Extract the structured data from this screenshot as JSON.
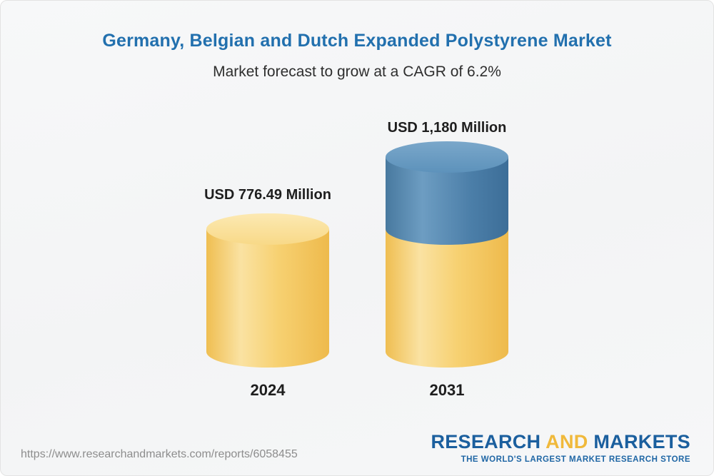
{
  "chart_data": {
    "type": "bar",
    "title": "Germany, Belgian and Dutch Expanded Polystyrene Market",
    "subtitle": "Market forecast to grow at a CAGR of 6.2%",
    "categories": [
      "2024",
      "2031"
    ],
    "values": [
      776.49,
      1180
    ],
    "value_labels": [
      "USD 776.49 Million",
      "USD 1,180 Million"
    ],
    "unit": "USD Million",
    "cagr": "6.2%",
    "legend_position": "none",
    "grid": false,
    "colors": {
      "base_segment": "#F6CB5C",
      "growth_segment": "#4A7DA8",
      "title_text": "#2270AE"
    }
  },
  "footer": {
    "url": "https://www.researchandmarkets.com/reports/6058455",
    "logo": {
      "research": "RESEARCH",
      "and": "AND",
      "markets": "MARKETS",
      "tagline": "THE WORLD'S LARGEST MARKET RESEARCH STORE"
    }
  }
}
